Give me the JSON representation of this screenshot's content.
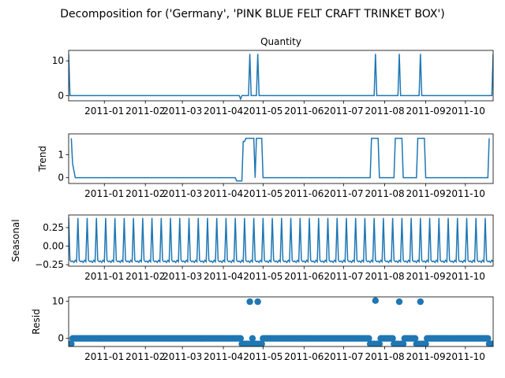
{
  "suptitle": "Decomposition for ('Germany', 'PINK BLUE FELT CRAFT TRINKET BOX')",
  "line_color": "#1f77b4",
  "chart_data": [
    {
      "type": "line",
      "title": "Quantity",
      "ylabel": "",
      "xlim": [
        "2010-12-05",
        "2011-10-22"
      ],
      "ylim": [
        -1.5,
        13
      ],
      "yticks": [
        0,
        10
      ],
      "xticks": [
        "2011-01",
        "2011-02",
        "2011-03",
        "2011-04",
        "2011-05",
        "2011-06",
        "2011-07",
        "2011-08",
        "2011-09",
        "2011-10"
      ],
      "x": [
        "2010-12-05",
        "2010-12-06",
        "2011-04-13",
        "2011-04-14",
        "2011-04-15",
        "2011-04-20",
        "2011-04-21",
        "2011-04-22",
        "2011-04-26",
        "2011-04-27",
        "2011-04-28",
        "2011-07-24",
        "2011-07-25",
        "2011-07-26",
        "2011-08-11",
        "2011-08-12",
        "2011-08-13",
        "2011-08-27",
        "2011-08-28",
        "2011-08-29",
        "2011-10-21",
        "2011-10-22"
      ],
      "y": [
        12,
        0,
        0,
        -1,
        0,
        0,
        12,
        0,
        0,
        12,
        0,
        0,
        12,
        0,
        0,
        12,
        0,
        0,
        12,
        0,
        0,
        12
      ]
    },
    {
      "type": "line",
      "title": "",
      "ylabel": "Trend",
      "xlim": [
        "2010-12-05",
        "2011-10-22"
      ],
      "ylim": [
        -0.25,
        1.9
      ],
      "yticks": [
        0,
        1
      ],
      "xticks": [
        "2011-01",
        "2011-02",
        "2011-03",
        "2011-04",
        "2011-05",
        "2011-06",
        "2011-07",
        "2011-08",
        "2011-09",
        "2011-10"
      ],
      "x": [
        "2010-12-07",
        "2010-12-08",
        "2010-12-10",
        "2011-04-10",
        "2011-04-11",
        "2011-04-15",
        "2011-04-16",
        "2011-04-17",
        "2011-04-18",
        "2011-04-20",
        "2011-04-24",
        "2011-04-25",
        "2011-04-26",
        "2011-04-30",
        "2011-05-01",
        "2011-07-21",
        "2011-07-22",
        "2011-07-27",
        "2011-07-28",
        "2011-08-08",
        "2011-08-09",
        "2011-08-14",
        "2011-08-15",
        "2011-08-25",
        "2011-08-26",
        "2011-08-31",
        "2011-09-01",
        "2011-10-18",
        "2011-10-19"
      ],
      "y": [
        1.71,
        0.6,
        0,
        0,
        -0.14,
        -0.14,
        1.57,
        1.57,
        1.71,
        1.71,
        1.71,
        0,
        1.71,
        1.71,
        0,
        0,
        1.71,
        1.71,
        0,
        0,
        1.71,
        1.71,
        0,
        0,
        1.71,
        1.71,
        0,
        0,
        1.71
      ]
    },
    {
      "type": "line",
      "title": "",
      "ylabel": "Seasonal",
      "xlim": [
        "2010-12-05",
        "2011-10-22"
      ],
      "ylim": [
        -0.27,
        0.42
      ],
      "yticks": [
        -0.25,
        0.0,
        0.25
      ],
      "ytick_labels": [
        "−0.25",
        "0.00",
        "0.25"
      ],
      "xticks": [
        "2011-01",
        "2011-02",
        "2011-03",
        "2011-04",
        "2011-05",
        "2011-06",
        "2011-07",
        "2011-08",
        "2011-09",
        "2011-10"
      ],
      "period_days": 7,
      "pattern": [
        0.38,
        -0.19,
        -0.21,
        -0.2,
        -0.22,
        -0.19,
        -0.21
      ]
    },
    {
      "type": "scatter",
      "title": "",
      "ylabel": "Resid",
      "xlim": [
        "2010-12-05",
        "2011-10-22"
      ],
      "ylim": [
        -2.2,
        11.2
      ],
      "yticks": [
        0,
        10
      ],
      "xticks": [
        "2011-01",
        "2011-02",
        "2011-03",
        "2011-04",
        "2011-05",
        "2011-06",
        "2011-07",
        "2011-08",
        "2011-09",
        "2011-10"
      ],
      "highlights": [
        {
          "x": "2011-04-21",
          "y": 9.9
        },
        {
          "x": "2011-04-27",
          "y": 9.9
        },
        {
          "x": "2011-07-25",
          "y": 10.2
        },
        {
          "x": "2011-08-12",
          "y": 9.9
        },
        {
          "x": "2011-08-28",
          "y": 9.9
        }
      ],
      "baseline_value": 0.0,
      "dip_value": -1.5,
      "dip_ranges": [
        [
          "2010-12-05",
          "2010-12-07"
        ],
        [
          "2011-04-15",
          "2011-04-22"
        ],
        [
          "2011-04-24",
          "2011-04-30"
        ],
        [
          "2011-07-21",
          "2011-07-28"
        ],
        [
          "2011-08-08",
          "2011-08-15"
        ],
        [
          "2011-08-25",
          "2011-09-01"
        ],
        [
          "2011-10-19",
          "2011-10-22"
        ]
      ]
    }
  ]
}
